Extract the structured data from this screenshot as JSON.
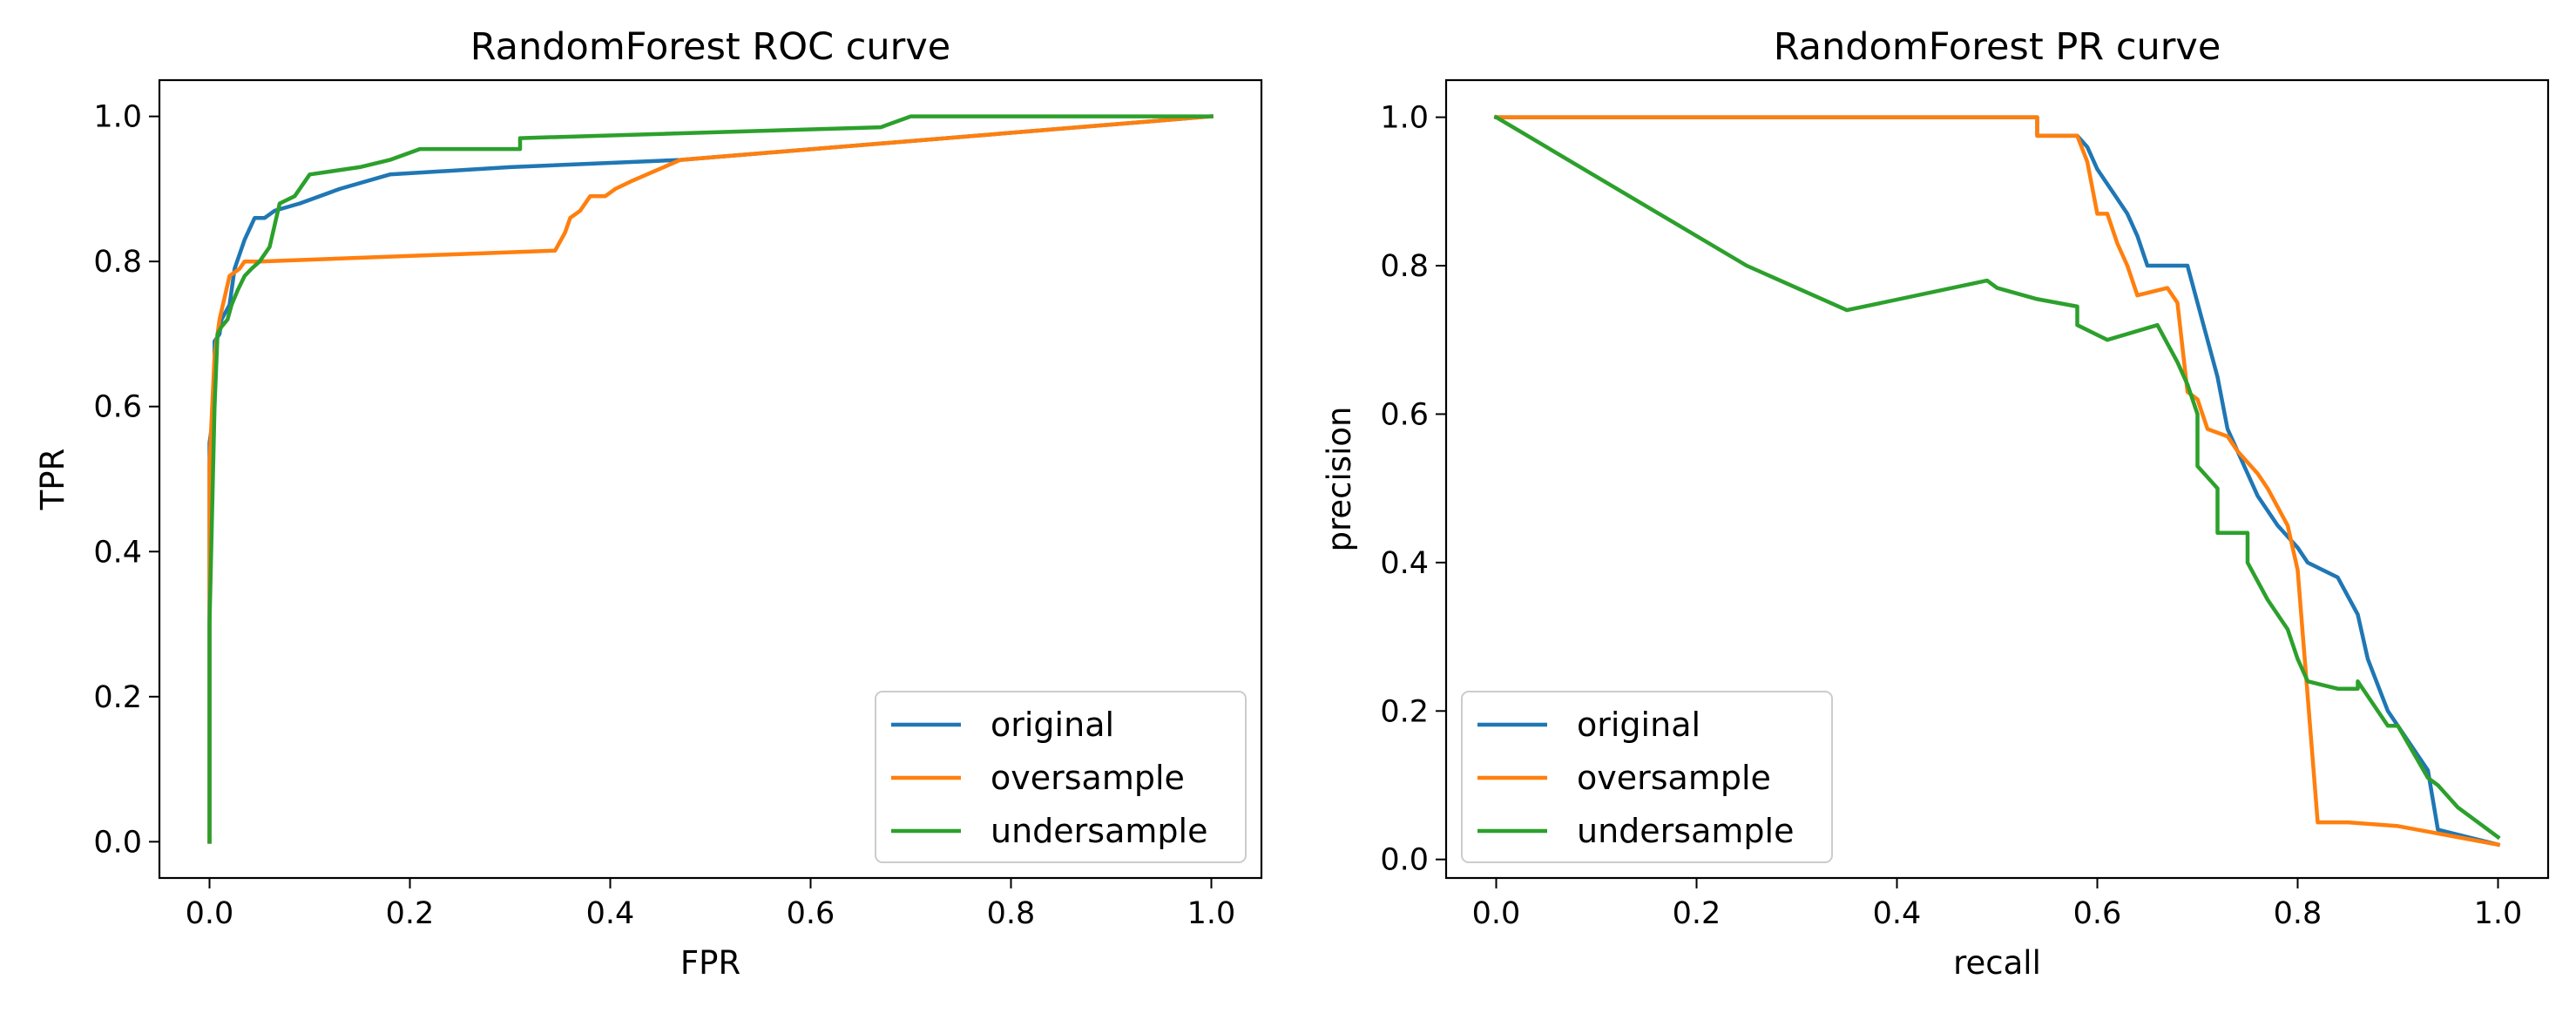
{
  "chart_data": [
    {
      "type": "line",
      "title": "RandomForest ROC curve",
      "xlabel": "FPR",
      "ylabel": "TPR",
      "xlim": [
        -0.05,
        1.05
      ],
      "ylim": [
        -0.05,
        1.05
      ],
      "xticks": [
        "0.0",
        "0.2",
        "0.4",
        "0.6",
        "0.8",
        "1.0"
      ],
      "yticks": [
        "0.0",
        "0.2",
        "0.4",
        "0.6",
        "0.8",
        "1.0"
      ],
      "legend_position": "lower right",
      "series": [
        {
          "name": "original",
          "color": "#1f77b4",
          "x": [
            0.0,
            0.0,
            0.005,
            0.005,
            0.01,
            0.012,
            0.02,
            0.025,
            0.035,
            0.045,
            0.055,
            0.065,
            0.09,
            0.13,
            0.18,
            0.3,
            0.47,
            1.0
          ],
          "y": [
            0.0,
            0.55,
            0.6,
            0.69,
            0.7,
            0.72,
            0.74,
            0.79,
            0.83,
            0.86,
            0.86,
            0.87,
            0.88,
            0.9,
            0.92,
            0.93,
            0.94,
            1.0
          ]
        },
        {
          "name": "oversample",
          "color": "#ff7f0e",
          "x": [
            0.0,
            0.0,
            0.005,
            0.01,
            0.02,
            0.03,
            0.035,
            0.05,
            0.345,
            0.355,
            0.36,
            0.37,
            0.38,
            0.395,
            0.405,
            0.42,
            0.47,
            1.0
          ],
          "y": [
            0.0,
            0.52,
            0.67,
            0.72,
            0.78,
            0.79,
            0.8,
            0.8,
            0.815,
            0.84,
            0.86,
            0.87,
            0.89,
            0.89,
            0.9,
            0.91,
            0.94,
            1.0
          ]
        },
        {
          "name": "undersample",
          "color": "#2ca02c",
          "x": [
            0.0,
            0.0,
            0.005,
            0.008,
            0.012,
            0.018,
            0.022,
            0.028,
            0.035,
            0.042,
            0.05,
            0.06,
            0.07,
            0.085,
            0.1,
            0.15,
            0.18,
            0.21,
            0.31,
            0.31,
            0.67,
            0.7,
            1.0
          ],
          "y": [
            0.0,
            0.3,
            0.6,
            0.7,
            0.71,
            0.72,
            0.74,
            0.76,
            0.78,
            0.79,
            0.8,
            0.82,
            0.88,
            0.89,
            0.92,
            0.93,
            0.94,
            0.955,
            0.955,
            0.97,
            0.985,
            1.0,
            1.0
          ]
        }
      ]
    },
    {
      "type": "line",
      "title": "RandomForest PR curve",
      "xlabel": "recall",
      "ylabel": "precision",
      "xlim": [
        -0.05,
        1.05
      ],
      "ylim": [
        -0.025,
        1.05
      ],
      "xticks": [
        "0.0",
        "0.2",
        "0.4",
        "0.6",
        "0.8",
        "1.0"
      ],
      "yticks": [
        "0.0",
        "0.2",
        "0.4",
        "0.6",
        "0.8",
        "1.0"
      ],
      "legend_position": "lower left",
      "series": [
        {
          "name": "original",
          "color": "#1f77b4",
          "x": [
            0.0,
            0.54,
            0.54,
            0.58,
            0.59,
            0.6,
            0.61,
            0.62,
            0.63,
            0.64,
            0.65,
            0.69,
            0.7,
            0.71,
            0.72,
            0.73,
            0.74,
            0.76,
            0.78,
            0.8,
            0.81,
            0.84,
            0.86,
            0.87,
            0.89,
            0.93,
            0.94,
            1.0
          ],
          "y": [
            1.0,
            1.0,
            0.975,
            0.975,
            0.96,
            0.93,
            0.91,
            0.89,
            0.87,
            0.84,
            0.8,
            0.8,
            0.75,
            0.7,
            0.65,
            0.58,
            0.55,
            0.49,
            0.45,
            0.42,
            0.4,
            0.38,
            0.33,
            0.27,
            0.2,
            0.12,
            0.04,
            0.02
          ]
        },
        {
          "name": "oversample",
          "color": "#ff7f0e",
          "x": [
            0.0,
            0.54,
            0.54,
            0.58,
            0.59,
            0.6,
            0.61,
            0.62,
            0.63,
            0.64,
            0.67,
            0.68,
            0.69,
            0.7,
            0.71,
            0.73,
            0.74,
            0.76,
            0.77,
            0.79,
            0.8,
            0.82,
            0.85,
            0.9,
            1.0
          ],
          "y": [
            1.0,
            1.0,
            0.975,
            0.975,
            0.94,
            0.87,
            0.87,
            0.83,
            0.8,
            0.76,
            0.77,
            0.75,
            0.63,
            0.62,
            0.58,
            0.57,
            0.55,
            0.52,
            0.5,
            0.45,
            0.39,
            0.05,
            0.05,
            0.045,
            0.02
          ]
        },
        {
          "name": "undersample",
          "color": "#2ca02c",
          "x": [
            0.0,
            0.25,
            0.35,
            0.49,
            0.5,
            0.54,
            0.58,
            0.58,
            0.61,
            0.66,
            0.68,
            0.69,
            0.7,
            0.7,
            0.72,
            0.72,
            0.75,
            0.75,
            0.77,
            0.78,
            0.79,
            0.8,
            0.81,
            0.84,
            0.86,
            0.86,
            0.89,
            0.9,
            0.93,
            0.94,
            0.96,
            0.98,
            1.0
          ],
          "y": [
            1.0,
            0.8,
            0.74,
            0.78,
            0.77,
            0.755,
            0.745,
            0.72,
            0.7,
            0.72,
            0.67,
            0.64,
            0.6,
            0.53,
            0.5,
            0.44,
            0.44,
            0.4,
            0.35,
            0.33,
            0.31,
            0.27,
            0.24,
            0.23,
            0.23,
            0.24,
            0.18,
            0.18,
            0.11,
            0.1,
            0.07,
            0.05,
            0.03
          ]
        }
      ]
    }
  ]
}
